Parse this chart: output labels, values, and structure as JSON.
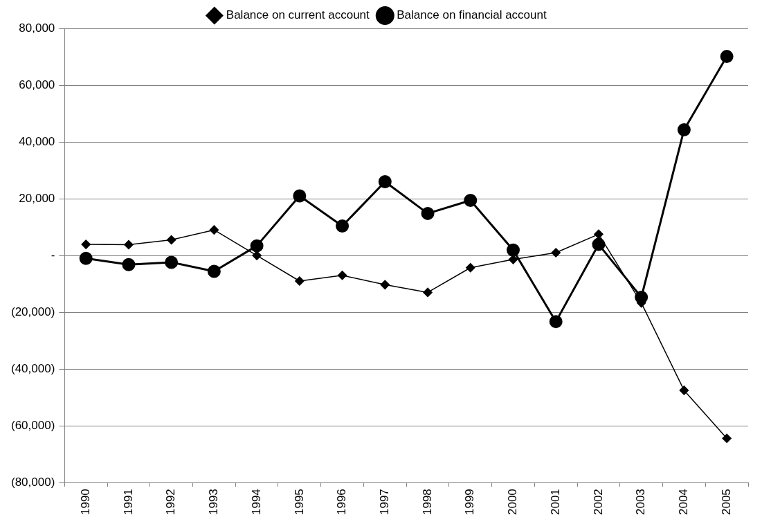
{
  "chart_data": {
    "type": "line",
    "categories": [
      "1990",
      "1991",
      "1992",
      "1993",
      "1994",
      "1995",
      "1996",
      "1997",
      "1998",
      "1999",
      "2000",
      "2001",
      "2002",
      "2003",
      "2004",
      "2005"
    ],
    "series": [
      {
        "name": "Balance on current account",
        "color": "#000000",
        "marker": "diamond",
        "values": [
          3900,
          3800,
          5500,
          9000,
          0,
          -9000,
          -7000,
          -10300,
          -13000,
          -4300,
          -1400,
          1000,
          7500,
          -16700,
          -47500,
          -64400
        ]
      },
      {
        "name": "Balance on financial account",
        "color": "#000000",
        "marker": "circle",
        "values": [
          -1000,
          -3200,
          -2400,
          -5600,
          3400,
          21000,
          10400,
          26000,
          14800,
          19400,
          1900,
          -23300,
          3900,
          -14700,
          44300,
          70100
        ]
      }
    ],
    "ylim": [
      -80000,
      80000
    ],
    "yticks": [
      {
        "value": -80000,
        "label": "(80,000)"
      },
      {
        "value": -60000,
        "label": "(60,000)"
      },
      {
        "value": -40000,
        "label": "(40,000)"
      },
      {
        "value": -20000,
        "label": "(20,000)"
      },
      {
        "value": 0,
        "label": "-"
      },
      {
        "value": 20000,
        "label": "20,000"
      },
      {
        "value": 40000,
        "label": "40,000"
      },
      {
        "value": 60000,
        "label": "60,000"
      },
      {
        "value": 80000,
        "label": "80,000"
      }
    ],
    "grid": "y",
    "legend": "top",
    "line_style": "solid"
  }
}
